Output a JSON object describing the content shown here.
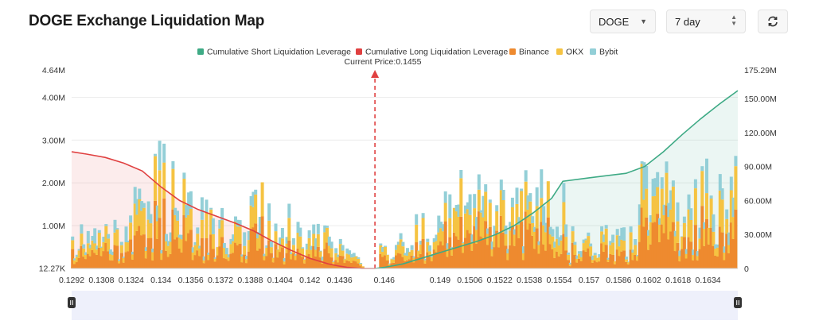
{
  "header": {
    "title": "DOGE Exchange Liquidation Map",
    "symbol_select": {
      "value": "DOGE"
    },
    "range_select": {
      "value": "7 day"
    },
    "refresh_icon": "refresh-icon"
  },
  "colors": {
    "short_line": "#3eaa85",
    "long_line": "#e04040",
    "binance": "#ee8a2f",
    "okx": "#f5c342",
    "bybit": "#93cfd7",
    "price_marker": "#e04040"
  },
  "chart_data": {
    "type": "bar",
    "stacked": true,
    "current_price_label": "Current Price:0.1455",
    "current_price": 0.1455,
    "legend": [
      {
        "name": "Cumulative Short Liquidation Leverage",
        "color": "#3eaa85"
      },
      {
        "name": "Cumulative Long Liquidation Leverage",
        "color": "#e04040"
      },
      {
        "name": "Binance",
        "color": "#ee8a2f"
      },
      {
        "name": "OKX",
        "color": "#f5c342"
      },
      {
        "name": "Bybit",
        "color": "#93cfd7"
      }
    ],
    "x_range": [
      0.1292,
      0.165
    ],
    "x_ticks": [
      "0.1292",
      "0.1308",
      "0.1324",
      "0.134",
      "0.1356",
      "0.1372",
      "0.1388",
      "0.1404",
      "0.142",
      "0.1436",
      "0.146",
      "0.149",
      "0.1506",
      "0.1522",
      "0.1538",
      "0.1554",
      "0.157",
      "0.1586",
      "0.1602",
      "0.1618",
      "0.1634"
    ],
    "left_axis": {
      "labels": [
        "12.27K",
        "1.00M",
        "2.00M",
        "3.00M",
        "4.00M",
        "4.64M"
      ],
      "range": [
        0,
        4.64
      ]
    },
    "right_axis": {
      "labels": [
        "0",
        "30.00M",
        "60.00M",
        "90.00M",
        "120.00M",
        "150.00M",
        "175.29M"
      ],
      "range": [
        0,
        175.29
      ]
    },
    "long_cumulative": {
      "x": [
        0.1292,
        0.13,
        0.131,
        0.132,
        0.133,
        0.134,
        0.135,
        0.136,
        0.137,
        0.138,
        0.139,
        0.14,
        0.141,
        0.142,
        0.143,
        0.1436,
        0.144,
        0.1448,
        0.1455
      ],
      "y": [
        103,
        101,
        98,
        93,
        86,
        72,
        60,
        52,
        46,
        40,
        33,
        24,
        16,
        9,
        4,
        2,
        1,
        0,
        0
      ]
    },
    "short_cumulative": {
      "x": [
        0.1455,
        0.146,
        0.147,
        0.148,
        0.149,
        0.15,
        0.151,
        0.152,
        0.153,
        0.154,
        0.155,
        0.1556,
        0.157,
        0.159,
        0.16,
        0.161,
        0.162,
        0.163,
        0.164,
        0.165
      ],
      "y": [
        0,
        1,
        4,
        9,
        14,
        19,
        24,
        30,
        38,
        49,
        62,
        77,
        80,
        84,
        90,
        103,
        118,
        132,
        145,
        157
      ]
    },
    "series_names": [
      "Binance",
      "OKX",
      "Bybit"
    ]
  }
}
